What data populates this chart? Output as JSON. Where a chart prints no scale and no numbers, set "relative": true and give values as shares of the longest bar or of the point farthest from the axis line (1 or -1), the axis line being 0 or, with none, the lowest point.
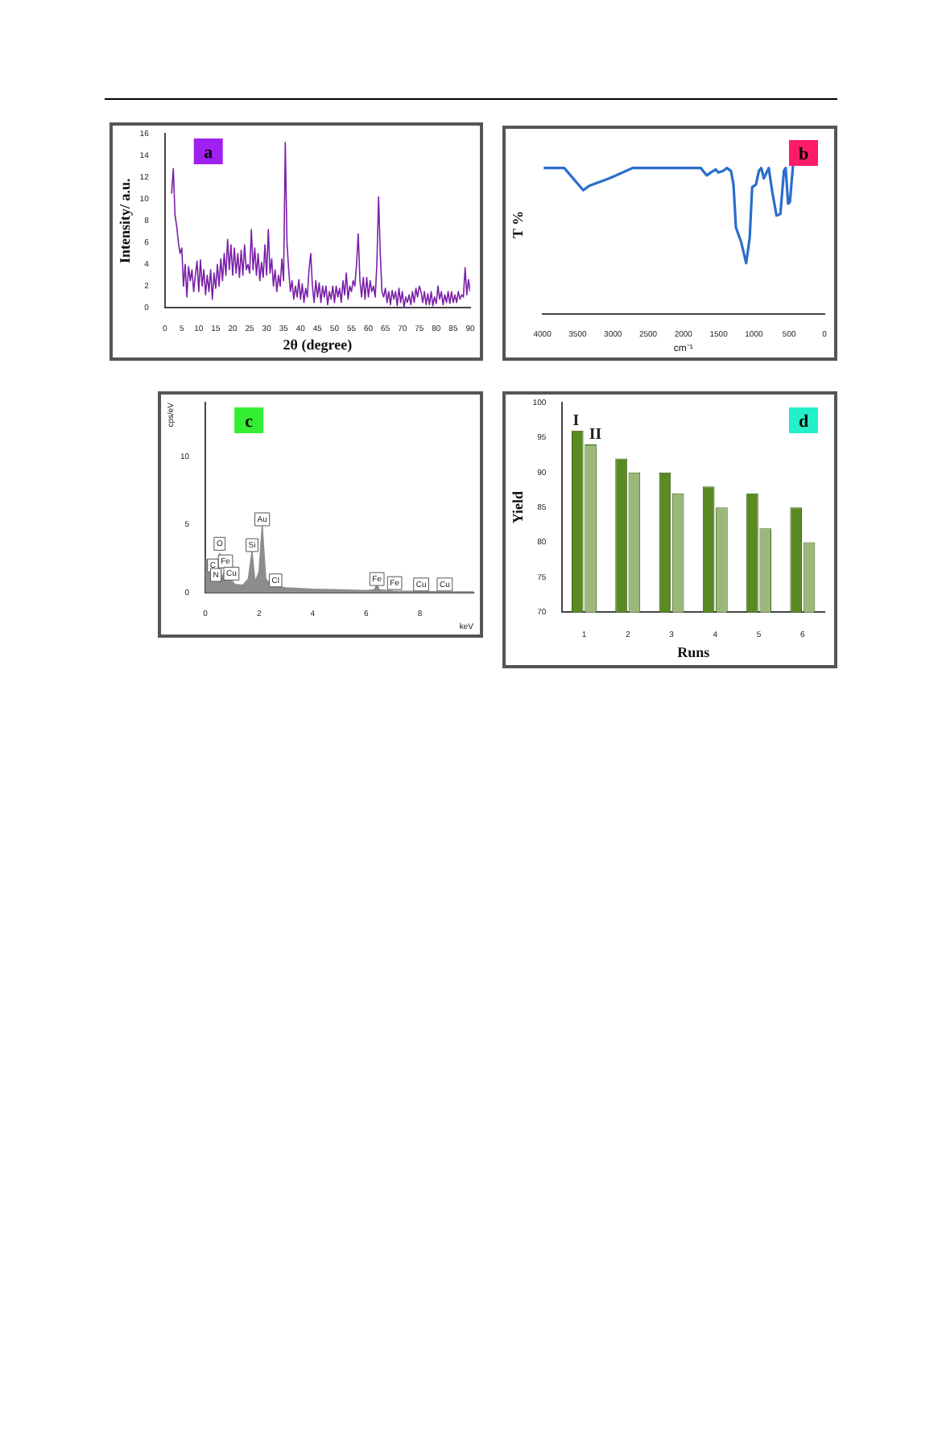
{
  "chart_data": [
    {
      "type": "line",
      "title": "a",
      "xlabel": "2θ (degree)",
      "ylabel": "Intensity/ a.u.",
      "color": "#7a1fa8",
      "x": [
        2,
        2.5,
        3,
        3.5,
        4,
        4.5,
        5,
        5.5,
        6,
        6.5,
        7,
        7.5,
        8,
        8.5,
        9,
        9.5,
        10,
        10.5,
        11,
        11.5,
        12,
        12.5,
        13,
        13.5,
        14,
        14.5,
        15,
        15.5,
        16,
        16.5,
        17,
        17.5,
        18,
        18.5,
        19,
        19.5,
        20,
        20.5,
        21,
        21.5,
        22,
        22.5,
        23,
        23.5,
        24,
        24.5,
        25,
        25.5,
        26,
        26.5,
        27,
        27.5,
        28,
        28.5,
        29,
        29.5,
        30,
        30.5,
        31,
        31.5,
        32,
        32.5,
        33,
        33.5,
        34,
        34.5,
        35,
        35.5,
        36,
        36.5,
        37,
        37.5,
        38,
        38.5,
        39,
        39.5,
        40,
        40.5,
        41,
        41.5,
        42,
        42.5,
        43,
        43.5,
        44,
        44.5,
        45,
        45.5,
        46,
        46.5,
        47,
        47.5,
        48,
        48.5,
        49,
        49.5,
        50,
        50.5,
        51,
        51.5,
        52,
        52.5,
        53,
        53.5,
        54,
        54.5,
        55,
        55.5,
        56,
        56.5,
        57,
        57.5,
        58,
        58.5,
        59,
        59.5,
        60,
        60.5,
        61,
        61.5,
        62,
        62.5,
        63,
        63.5,
        64,
        64.5,
        65,
        65.5,
        66,
        66.5,
        67,
        67.5,
        68,
        68.5,
        69,
        69.5,
        70,
        70.5,
        71,
        71.5,
        72,
        72.5,
        73,
        73.5,
        74,
        74.5,
        75,
        75.5,
        76,
        76.5,
        77,
        77.5,
        78,
        78.5,
        79,
        79.5,
        80,
        80.5,
        81,
        81.5,
        82,
        82.5,
        83,
        83.5,
        84,
        84.5,
        85,
        85.5,
        86,
        86.5,
        87,
        87.5,
        88,
        88.5,
        89,
        89.5,
        90
      ],
      "values": [
        10.5,
        12.8,
        8.5,
        7.5,
        6,
        5,
        5.5,
        2,
        4,
        1,
        3.8,
        2.5,
        3.5,
        1.5,
        3,
        4.3,
        1.5,
        4.4,
        2,
        3.5,
        1.2,
        3,
        1.5,
        3.5,
        0.8,
        3.2,
        1.8,
        4,
        2,
        4.5,
        2.5,
        5,
        3,
        6.3,
        3.5,
        5.8,
        3,
        5.5,
        3.2,
        5,
        2.8,
        5.3,
        3,
        5.8,
        3.5,
        4,
        3.2,
        7.2,
        3.5,
        5.5,
        3,
        5,
        2.5,
        4.2,
        2.8,
        5.8,
        3,
        7.2,
        3.2,
        4.5,
        2,
        3.5,
        1.5,
        3,
        2,
        4.5,
        2.5,
        15.2,
        6,
        3.5,
        1.5,
        2.5,
        0.8,
        2,
        1,
        2.6,
        0.8,
        2.2,
        0.5,
        1.8,
        1,
        3.5,
        5,
        2,
        0.5,
        2.5,
        1,
        2.3,
        0.5,
        2,
        1,
        2,
        0.3,
        1.5,
        0.8,
        2,
        0.5,
        2,
        1,
        1.8,
        0.5,
        2.5,
        1.2,
        3.2,
        0.8,
        2,
        1.5,
        2.5,
        2,
        4,
        6.8,
        2.5,
        1,
        2.8,
        0.8,
        2.8,
        1,
        2.5,
        1.5,
        2,
        1,
        4,
        10.2,
        5,
        1.5,
        1,
        1.8,
        0.5,
        1.5,
        0.3,
        1.6,
        0.8,
        1.5,
        0.2,
        1.8,
        0.5,
        1.5,
        0,
        1,
        0.5,
        1.2,
        0.3,
        1.5,
        0.5,
        1.8,
        1,
        2,
        1.5,
        0.5,
        1.5,
        0.3,
        1.3,
        0.3,
        1.5,
        0.2,
        1,
        0.4,
        2,
        0.8,
        1.5,
        0.3,
        1.2,
        0.5,
        1.5,
        0.4,
        1.5,
        0.5,
        1.2,
        0.5,
        1.5,
        0.8,
        1.2,
        1,
        3.7,
        1.2,
        2.6,
        1.5
      ],
      "xlim": [
        0,
        90
      ],
      "xticks": [
        0,
        5,
        10,
        15,
        20,
        25,
        30,
        35,
        40,
        45,
        50,
        55,
        60,
        65,
        70,
        75,
        80,
        85,
        90
      ],
      "ylim": [
        0,
        16
      ],
      "yticks": [
        0,
        2,
        4,
        6,
        8,
        10,
        12,
        14,
        16
      ],
      "grid": false,
      "legend": false
    },
    {
      "type": "line",
      "title": "b",
      "xlabel": "cm⁻¹",
      "ylabel": "T %",
      "color": "#2a6dcc",
      "relative": true,
      "tick_labels": "x",
      "x": [
        3980,
        3690,
        3420,
        3335,
        3050,
        2720,
        1755,
        1670,
        1610,
        1540,
        1505,
        1435,
        1385,
        1325,
        1290,
        1255,
        1180,
        1110,
        1060,
        1025,
        970,
        930,
        895,
        860,
        790,
        740,
        680,
        625,
        575,
        550,
        515,
        490,
        445
      ],
      "values": [
        0.98,
        0.98,
        0.83,
        0.86,
        0.91,
        0.98,
        0.98,
        0.93,
        0.95,
        0.97,
        0.95,
        0.96,
        0.98,
        0.96,
        0.87,
        0.58,
        0.48,
        0.34,
        0.51,
        0.85,
        0.87,
        0.96,
        0.98,
        0.91,
        0.98,
        0.82,
        0.66,
        0.67,
        0.96,
        0.98,
        0.74,
        0.75,
        1
      ],
      "xlim": [
        4000,
        0
      ],
      "xticks": [
        4000,
        3500,
        3000,
        2500,
        2000,
        1500,
        1000,
        500,
        0
      ],
      "grid": false,
      "legend": false
    },
    {
      "type": "area",
      "title": "c",
      "xlabel": "keV",
      "ylabel": "cps/eV",
      "color": "#8c8c8c",
      "x": [
        0,
        0.1,
        0.2,
        0.28,
        0.35,
        0.45,
        0.53,
        0.6,
        0.71,
        0.8,
        0.93,
        1.1,
        1.4,
        1.6,
        1.74,
        1.85,
        2,
        2.12,
        2.25,
        2.5,
        3,
        4,
        5,
        6,
        6.3,
        6.4,
        6.5,
        7,
        8,
        9,
        10
      ],
      "values": [
        2.5,
        2.4,
        1.2,
        1.9,
        0.6,
        1,
        2.9,
        1,
        1.5,
        0.8,
        1,
        0.6,
        0.55,
        1,
        3,
        0.8,
        1.5,
        4.9,
        1,
        0.5,
        0.35,
        0.25,
        0.2,
        0.15,
        0.2,
        0.55,
        0.2,
        0.12,
        0.08,
        0.05,
        0.05
      ],
      "xlim": [
        0,
        10
      ],
      "xticks": [
        0,
        2,
        4,
        6,
        8
      ],
      "ylim": [
        0,
        14
      ],
      "yticks": [
        0,
        5,
        10
      ],
      "grid": false,
      "legend": false,
      "annotations": [
        {
          "text": "C",
          "x": 0.28,
          "y": 2.0
        },
        {
          "text": "N",
          "x": 0.39,
          "y": 1.3
        },
        {
          "text": "O",
          "x": 0.53,
          "y": 3.6
        },
        {
          "text": "Fe",
          "x": 0.75,
          "y": 2.3
        },
        {
          "text": "Cu",
          "x": 0.97,
          "y": 1.4
        },
        {
          "text": "Si",
          "x": 1.74,
          "y": 3.5
        },
        {
          "text": "Au",
          "x": 2.12,
          "y": 5.4
        },
        {
          "text": "Cl",
          "x": 2.62,
          "y": 0.9
        },
        {
          "text": "Fe",
          "x": 6.4,
          "y": 1.0
        },
        {
          "text": "Fe",
          "x": 7.06,
          "y": 0.7
        },
        {
          "text": "Cu",
          "x": 8.05,
          "y": 0.6
        },
        {
          "text": "Cu",
          "x": 8.93,
          "y": 0.6
        }
      ]
    },
    {
      "type": "bar",
      "title": "d",
      "xlabel": "Runs",
      "ylabel": "Yield",
      "categories": [
        "1",
        "2",
        "3",
        "4",
        "5",
        "6"
      ],
      "series": [
        {
          "name": "I",
          "color": "#5a8a22",
          "values": [
            96,
            92,
            90,
            88,
            87,
            85
          ]
        },
        {
          "name": "II",
          "color": "#9bb77a",
          "values": [
            94,
            90,
            87,
            85,
            82,
            80
          ]
        }
      ],
      "ylim": [
        70,
        100
      ],
      "yticks": [
        70,
        75,
        80,
        85,
        90,
        95,
        100
      ],
      "grid": false,
      "legend": false
    }
  ]
}
